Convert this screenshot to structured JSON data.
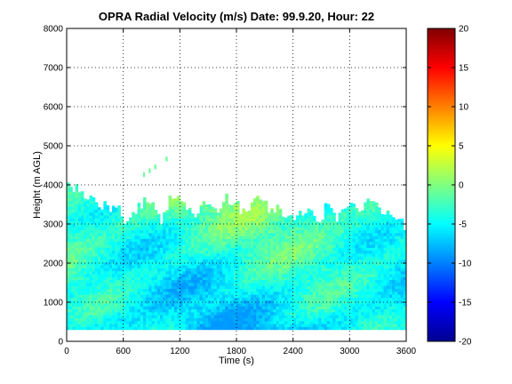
{
  "chart_data": {
    "type": "heatmap",
    "title": "OPRA Radial Velocity (m/s)  Date: 99.9.20, Hour: 22",
    "xlabel": "Time (s)",
    "ylabel": "Height (m AGL)",
    "xlim": [
      0,
      3600
    ],
    "ylim": [
      0,
      8000
    ],
    "x_ticks": [
      0,
      600,
      1200,
      1800,
      2400,
      3000,
      3600
    ],
    "y_ticks": [
      0,
      1000,
      2000,
      3000,
      4000,
      5000,
      6000,
      7000,
      8000
    ],
    "grid": true,
    "colormap": "jet",
    "color_range": [
      -20,
      20
    ],
    "colorbar_ticks": [
      20,
      15,
      10,
      5,
      0,
      -5,
      -10,
      -15,
      -20
    ],
    "data_bottom_height": 300,
    "typical_velocity_range": [
      -9,
      2
    ],
    "data_top_profile": {
      "time": [
        0,
        60,
        120,
        180,
        240,
        300,
        360,
        420,
        480,
        540,
        600,
        660,
        720,
        780,
        840,
        900,
        960,
        1020,
        1080,
        1140,
        1200,
        1260,
        1320,
        1380,
        1440,
        1500,
        1560,
        1620,
        1680,
        1740,
        1800,
        1860,
        1920,
        1980,
        2040,
        2100,
        2160,
        2220,
        2280,
        2340,
        2400,
        2460,
        2520,
        2580,
        2640,
        2700,
        2760,
        2820,
        2880,
        2940,
        3000,
        3060,
        3120,
        3180,
        3240,
        3300,
        3360,
        3420,
        3480,
        3540,
        3600
      ],
      "top_height": [
        3900,
        4000,
        3850,
        3650,
        3700,
        3600,
        3500,
        3450,
        3300,
        3600,
        3100,
        3000,
        3300,
        3450,
        3700,
        3550,
        3250,
        3050,
        3550,
        3700,
        3800,
        3500,
        3300,
        3150,
        3700,
        3550,
        3450,
        3350,
        3700,
        3550,
        3500,
        3350,
        3300,
        3600,
        3650,
        3500,
        3300,
        3450,
        3300,
        3200,
        3150,
        3300,
        3350,
        3400,
        3100,
        3050,
        3500,
        3250,
        3150,
        3350,
        3400,
        3500,
        3450,
        3600,
        3700,
        3300,
        3350,
        3250,
        3200,
        3100,
        2900
      ]
    }
  }
}
